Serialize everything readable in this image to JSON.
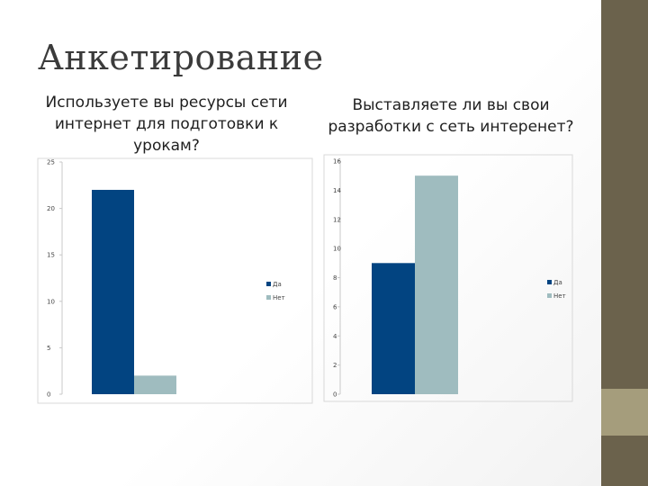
{
  "slide": {
    "title": "Анкетирование",
    "colors": {
      "bg": "#ffffff",
      "side_dark": "#6b624c",
      "side_light": "#a59d7c"
    }
  },
  "chart_data": [
    {
      "type": "bar",
      "title": "Используете вы ресурсы сети интернет для подготовки к урокам?",
      "xlabel": "",
      "ylabel": "",
      "ylim": [
        0,
        25
      ],
      "yticks": [
        0,
        5,
        10,
        15,
        20,
        25
      ],
      "grid": false,
      "legend_position": "right",
      "series": [
        {
          "name": "Да",
          "values": [
            22
          ],
          "color": "#024481"
        },
        {
          "name": "Нет",
          "values": [
            2
          ],
          "color": "#9fbcbf"
        }
      ]
    },
    {
      "type": "bar",
      "title": "Выставляете ли вы свои разработки с сеть интеренет?",
      "xlabel": "",
      "ylabel": "",
      "ylim": [
        0,
        16
      ],
      "yticks": [
        0,
        2,
        4,
        6,
        8,
        10,
        12,
        14,
        16
      ],
      "grid": false,
      "legend_position": "right",
      "series": [
        {
          "name": "Да",
          "values": [
            9
          ],
          "color": "#024481"
        },
        {
          "name": "Нет",
          "values": [
            15
          ],
          "color": "#9fbcbf"
        }
      ]
    }
  ]
}
